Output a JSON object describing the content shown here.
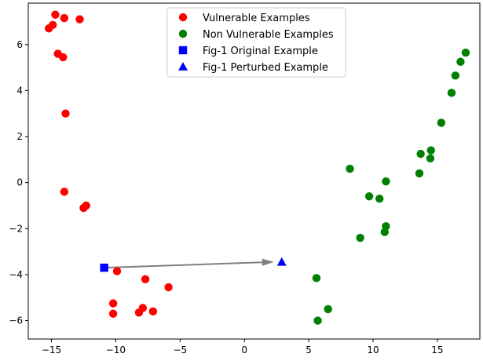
{
  "chart_data": {
    "type": "scatter",
    "title": "",
    "xlabel": "",
    "ylabel": "",
    "xlim": [
      -16.8,
      18.3
    ],
    "ylim": [
      -6.8,
      7.8
    ],
    "xticks": [
      -15,
      -10,
      -5,
      0,
      5,
      10,
      15
    ],
    "yticks": [
      -6,
      -4,
      -2,
      0,
      2,
      4,
      6
    ],
    "xtick_labels": [
      "−15",
      "−10",
      "−5",
      "0",
      "5",
      "10",
      "15"
    ],
    "ytick_labels": [
      "−6",
      "−4",
      "−2",
      "0",
      "2",
      "4",
      "6"
    ],
    "grid": false,
    "legend_position": "upper center",
    "series": [
      {
        "name": "Vulnerable Examples",
        "marker": "circle",
        "color": "#ff0000",
        "points": [
          [
            -15.2,
            6.7
          ],
          [
            -14.9,
            6.85
          ],
          [
            -14.7,
            7.3
          ],
          [
            -14.0,
            7.15
          ],
          [
            -12.8,
            7.1
          ],
          [
            -14.5,
            5.6
          ],
          [
            -14.1,
            5.45
          ],
          [
            -13.9,
            3.0
          ],
          [
            -14.0,
            -0.4
          ],
          [
            -12.5,
            -1.1
          ],
          [
            -12.3,
            -1.0
          ],
          [
            -9.9,
            -3.85
          ],
          [
            -7.7,
            -4.2
          ],
          [
            -5.9,
            -4.55
          ],
          [
            -10.2,
            -5.25
          ],
          [
            -10.2,
            -5.7
          ],
          [
            -8.2,
            -5.65
          ],
          [
            -7.9,
            -5.45
          ],
          [
            -7.1,
            -5.6
          ]
        ]
      },
      {
        "name": "Non Vulnerable Examples",
        "marker": "circle",
        "color": "#008000",
        "points": [
          [
            17.2,
            5.65
          ],
          [
            16.8,
            5.25
          ],
          [
            16.4,
            4.65
          ],
          [
            16.1,
            3.9
          ],
          [
            15.3,
            2.6
          ],
          [
            14.5,
            1.4
          ],
          [
            14.45,
            1.05
          ],
          [
            13.7,
            1.25
          ],
          [
            13.6,
            0.4
          ],
          [
            8.2,
            0.6
          ],
          [
            11.0,
            0.05
          ],
          [
            9.7,
            -0.6
          ],
          [
            10.5,
            -0.7
          ],
          [
            11.0,
            -1.9
          ],
          [
            10.9,
            -2.15
          ],
          [
            9.0,
            -2.4
          ],
          [
            5.6,
            -4.15
          ],
          [
            6.5,
            -5.5
          ],
          [
            5.7,
            -6.0
          ]
        ]
      },
      {
        "name": "Fig-1 Original Example",
        "marker": "square",
        "color": "#0000ff",
        "points": [
          [
            -10.9,
            -3.7
          ]
        ]
      },
      {
        "name": "Fig-1 Perturbed Example",
        "marker": "triangle",
        "color": "#0000ff",
        "points": [
          [
            2.9,
            -3.45
          ]
        ]
      }
    ],
    "arrows": [
      {
        "from": [
          -10.9,
          -3.7
        ],
        "to": [
          2.2,
          -3.45
        ],
        "color": "#808080"
      }
    ]
  }
}
